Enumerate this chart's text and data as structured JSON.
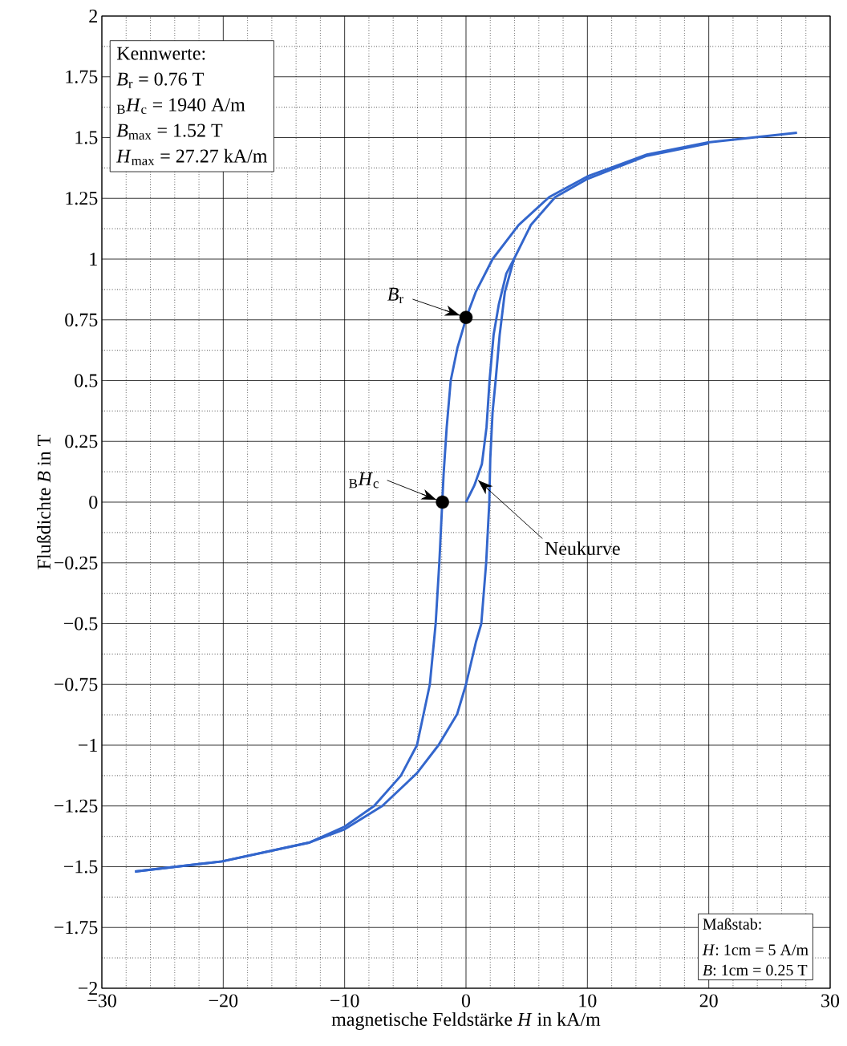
{
  "chart_data": {
    "type": "line",
    "xlabel": "magnetische Feldstärke *H* in kA/m",
    "ylabel": "Flußdichte *B* in T",
    "xlim": [
      -30,
      30
    ],
    "ylim": [
      -2,
      2
    ],
    "xticks": [
      {
        "value": -30,
        "label": "−30"
      },
      {
        "value": -20,
        "label": "−20"
      },
      {
        "value": -10,
        "label": "−10"
      },
      0,
      10,
      20,
      30
    ],
    "yticks": [
      {
        "value": -2,
        "label": "−2"
      },
      {
        "value": -1.75,
        "label": "−1.75"
      },
      {
        "value": -1.5,
        "label": "−1.5"
      },
      {
        "value": -1.25,
        "label": "−1.25"
      },
      {
        "value": -1,
        "label": "−1"
      },
      {
        "value": -0.75,
        "label": "−0.75"
      },
      {
        "value": -0.5,
        "label": "−0.5"
      },
      {
        "value": -0.25,
        "label": "−0.25"
      },
      0,
      0.25,
      0.5,
      0.75,
      1,
      1.25,
      1.5,
      1.75,
      2
    ],
    "grid": true,
    "series": [
      {
        "type": "line",
        "color": "#3366cc",
        "x": [
          27.27,
          19.95,
          14.9,
          10,
          6.85,
          4.33,
          2.19,
          0.8,
          0.05,
          -0.7,
          -1.26,
          -1.59,
          -1.84,
          -2.2,
          -2.5,
          -2.98,
          -4.04,
          -5.36,
          -7.57,
          -10,
          -12.87,
          -20.1,
          -27.27
        ],
        "values": [
          1.52,
          1.48,
          1.43,
          1.34,
          1.255,
          1.14,
          1.0,
          0.864,
          0.763,
          0.636,
          0.5,
          0.308,
          0.119,
          -0.25,
          -0.5,
          -0.75,
          -1.0,
          -1.125,
          -1.25,
          -1.335,
          -1.4,
          -1.478,
          -1.52
        ]
      },
      {
        "type": "line",
        "color": "#3366cc",
        "x": [
          -27.27,
          -20.1,
          -12.87,
          -10,
          -6.9,
          -4.04,
          -2.27,
          -0.73,
          0,
          0.82,
          1.26,
          1.66,
          1.92,
          2.0,
          2.19,
          2.44,
          2.77,
          3.2,
          3.95,
          5.34,
          7.35,
          10,
          14.9,
          19.95
        ],
        "values": [
          -1.52,
          -1.478,
          -1.4,
          -1.346,
          -1.25,
          -1.115,
          -1.0,
          -0.872,
          -0.75,
          -0.575,
          -0.5,
          -0.25,
          0,
          0.18,
          0.371,
          0.5,
          0.687,
          0.864,
          1.0,
          1.14,
          1.255,
          1.33,
          1.425,
          1.476
        ]
      },
      {
        "type": "line",
        "color": "#3366cc",
        "x": [
          0,
          0.68,
          1.31,
          1.69,
          1.94,
          2.27,
          2.7,
          3.32,
          3.95
        ],
        "values": [
          0,
          0.068,
          0.157,
          0.308,
          0.5,
          0.687,
          0.813,
          0.94,
          1.0
        ]
      },
      {
        "type": "scatter",
        "marker": "circle",
        "color": "#000000",
        "x": [
          0,
          -1.94
        ],
        "values": [
          0.76,
          0
        ]
      }
    ],
    "annotations": [
      "Kennwerte:",
      "*B*$_{r}$ = 0.76 T",
      "$_{B}$*H*$_{c}$ = 1940 A/m",
      "*B*$_{max}$ = 1.52 T",
      "*H*$_{max}$ = 27.27 kA/m",
      "Maßstab:",
      "*H*: 1cm = 5 A/m",
      "*B*: 1cm = 0.25 T",
      {
        "text": "*B*$_{r}$",
        "x": 0,
        "y": 0.76
      },
      {
        "text": "$_{B}$*H*$_{c}$",
        "x": -1.94,
        "y": 0
      },
      {
        "text": "Neukurve",
        "x": 1.0,
        "y": 0.09
      }
    ]
  }
}
